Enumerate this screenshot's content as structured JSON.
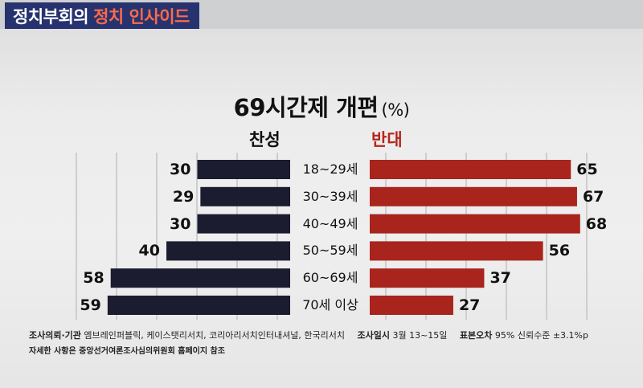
{
  "program": {
    "name_part1": "정치부회의",
    "name_part2": "정치 인사이드"
  },
  "chart_data": {
    "type": "bar",
    "title": "69시간제 개편",
    "unit": "(%)",
    "categories": [
      "18~29세",
      "30~39세",
      "40~49세",
      "50~59세",
      "60~69세",
      "70세 이상"
    ],
    "series": [
      {
        "name": "찬성",
        "values": [
          30,
          29,
          30,
          40,
          58,
          59
        ],
        "color": "#1c1c30"
      },
      {
        "name": "반대",
        "values": [
          65,
          67,
          68,
          56,
          37,
          27
        ],
        "color": "#a8241c"
      }
    ],
    "grid": true
  },
  "footer": {
    "source_label": "조사의뢰·기관",
    "source_value": "엠브레인퍼블릭, 케이스탯리서치, 코리아리서치인터내셔널, 한국리서치",
    "date_label": "조사일시",
    "date_value": "3월 13~15일",
    "error_label": "표본오차",
    "error_value": "95% 신뢰수준 ±3.1%p",
    "note": "자세한 사항은 중앙선거여론조사심의위원회 홈페이지 참조"
  }
}
